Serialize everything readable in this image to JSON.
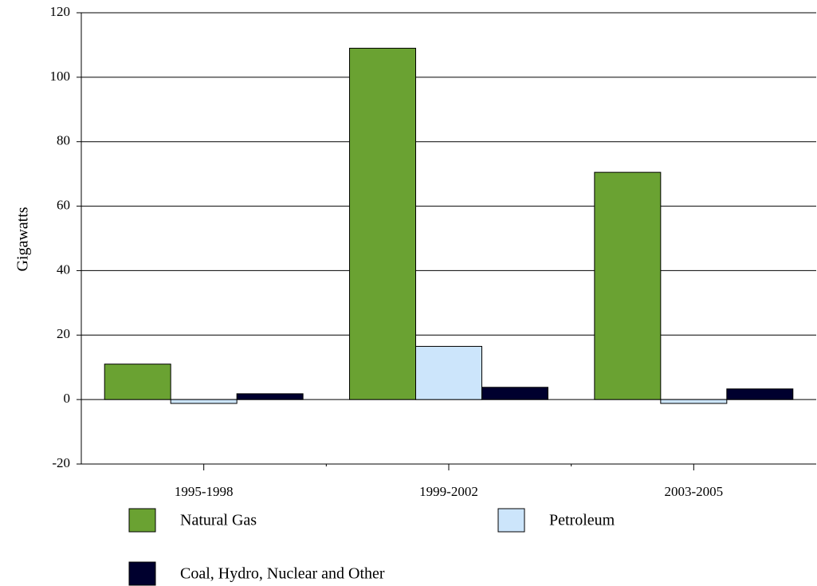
{
  "chart_data": {
    "type": "bar",
    "y_label": "Gigawatts",
    "categories": [
      "1995-1998",
      "1999-2002",
      "2003-2005"
    ],
    "series": [
      {
        "name": "Natural Gas",
        "color": "#6aa232",
        "values": [
          11,
          109,
          70.5
        ]
      },
      {
        "name": "Petroleum",
        "color": "#cce5fb",
        "values": [
          -1.2,
          16.5,
          -1.2
        ]
      },
      {
        "name": "Coal, Hydro, Nuclear and Other",
        "color": "#00002e",
        "values": [
          1.8,
          3.8,
          3.3
        ]
      }
    ],
    "ylim": [
      -20,
      120
    ],
    "yticks": [
      -20,
      0,
      20,
      40,
      60,
      80,
      100,
      120
    ],
    "grid": true
  }
}
